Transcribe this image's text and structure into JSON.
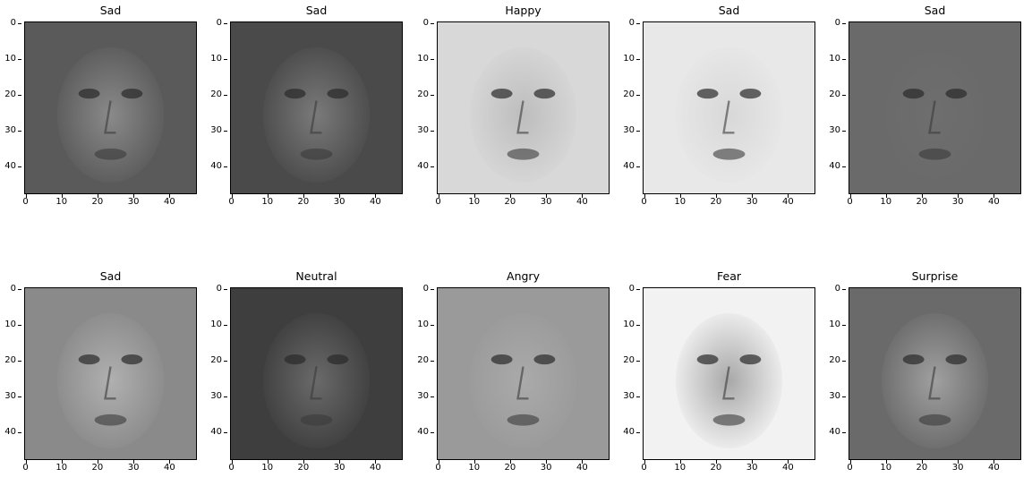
{
  "figure": {
    "panels": [
      {
        "title": "Sad",
        "base": "#5a5a5a",
        "face": "#8a8a8a",
        "x_ticks": [
          "0",
          "10",
          "20",
          "30",
          "40"
        ],
        "y_ticks": [
          "0",
          "10",
          "20",
          "30",
          "40"
        ]
      },
      {
        "title": "Sad",
        "base": "#4a4a4a",
        "face": "#7a7a7a",
        "x_ticks": [
          "0",
          "10",
          "20",
          "30",
          "40"
        ],
        "y_ticks": [
          "0",
          "10",
          "20",
          "30",
          "40"
        ]
      },
      {
        "title": "Happy",
        "base": "#d8d8d8",
        "face": "#bdbdbd",
        "x_ticks": [
          "0",
          "10",
          "20",
          "30",
          "40"
        ],
        "y_ticks": [
          "0",
          "10",
          "20",
          "30",
          "40"
        ]
      },
      {
        "title": "Sad",
        "base": "#e8e8e8",
        "face": "#d8d8d8",
        "x_ticks": [
          "0",
          "10",
          "20",
          "30",
          "40"
        ],
        "y_ticks": [
          "0",
          "10",
          "20",
          "30",
          "40"
        ]
      },
      {
        "title": "Sad",
        "base": "#6a6a6a",
        "face": "#6e6e6e",
        "x_ticks": [
          "0",
          "10",
          "20",
          "30",
          "40"
        ],
        "y_ticks": [
          "0",
          "10",
          "20",
          "30",
          "40"
        ]
      },
      {
        "title": "Sad",
        "base": "#8a8a8a",
        "face": "#b0b0b0",
        "x_ticks": [
          "0",
          "10",
          "20",
          "30",
          "40"
        ],
        "y_ticks": [
          "0",
          "10",
          "20",
          "30",
          "40"
        ]
      },
      {
        "title": "Neutral",
        "base": "#3e3e3e",
        "face": "#6a6a6a",
        "x_ticks": [
          "0",
          "10",
          "20",
          "30",
          "40"
        ],
        "y_ticks": [
          "0",
          "10",
          "20",
          "30",
          "40"
        ]
      },
      {
        "title": "Angry",
        "base": "#9a9a9a",
        "face": "#aaaaaa",
        "x_ticks": [
          "0",
          "10",
          "20",
          "30",
          "40"
        ],
        "y_ticks": [
          "0",
          "10",
          "20",
          "30",
          "40"
        ]
      },
      {
        "title": "Fear",
        "base": "#f2f2f2",
        "face": "#a8a8a8",
        "x_ticks": [
          "0",
          "10",
          "20",
          "30",
          "40"
        ],
        "y_ticks": [
          "0",
          "10",
          "20",
          "30",
          "40"
        ]
      },
      {
        "title": "Surprise",
        "base": "#6a6a6a",
        "face": "#a0a0a0",
        "x_ticks": [
          "0",
          "10",
          "20",
          "30",
          "40"
        ],
        "y_ticks": [
          "0",
          "10",
          "20",
          "30",
          "40"
        ]
      }
    ]
  }
}
